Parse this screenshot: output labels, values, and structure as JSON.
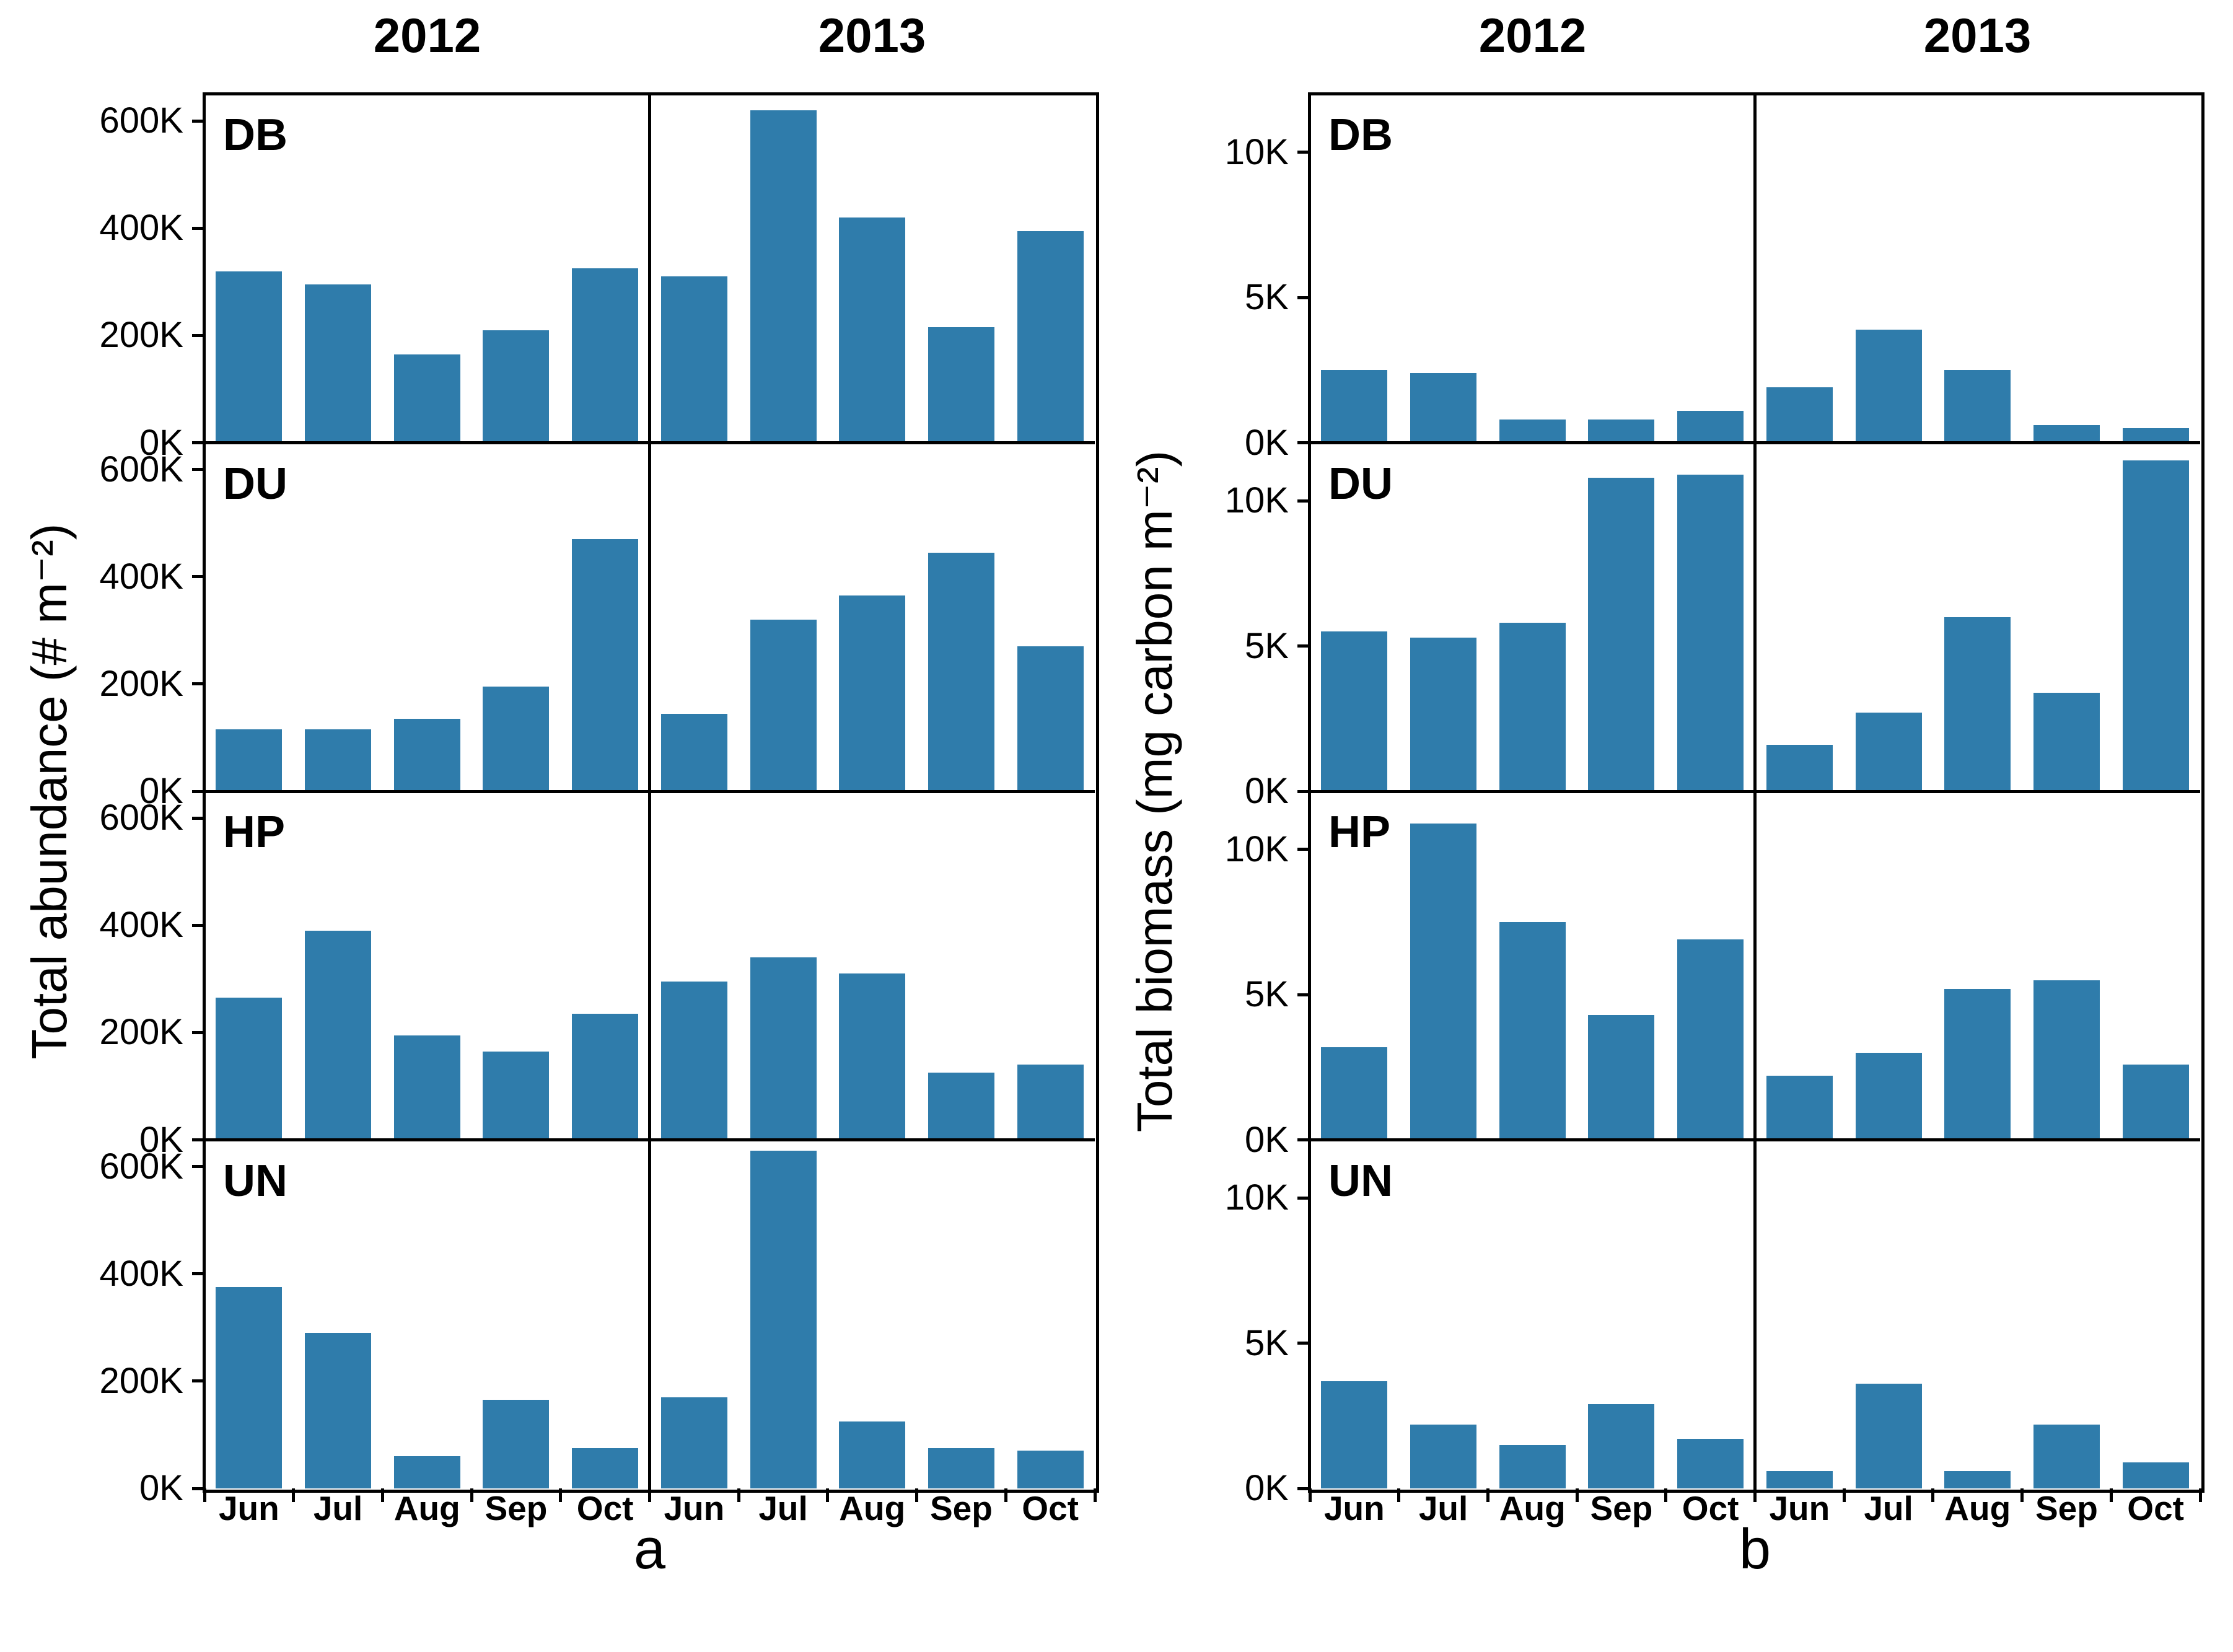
{
  "chart_data": [
    {
      "type": "bar",
      "caption": "a",
      "title_cols": [
        "2012",
        "2013"
      ],
      "ylabel": "Total abundance (# m⁻²)",
      "x_categories": [
        "Jun",
        "Jul",
        "Aug",
        "Sep",
        "Oct"
      ],
      "ytick_values": [
        0,
        200,
        400,
        600
      ],
      "ytick_labels": [
        "0K",
        "200K",
        "400K",
        "600K"
      ],
      "ylim": [
        0,
        650
      ],
      "bar_color": "#2f7cab",
      "legend": "none",
      "grid": "off",
      "rows": [
        {
          "label": "DB",
          "series": [
            {
              "name": "2012",
              "values": [
                320,
                295,
                165,
                210,
                325
              ]
            },
            {
              "name": "2013",
              "values": [
                310,
                620,
                420,
                215,
                395
              ]
            }
          ]
        },
        {
          "label": "DU",
          "series": [
            {
              "name": "2012",
              "values": [
                115,
                115,
                135,
                195,
                470
              ]
            },
            {
              "name": "2013",
              "values": [
                145,
                320,
                365,
                445,
                270
              ]
            }
          ]
        },
        {
          "label": "HP",
          "series": [
            {
              "name": "2012",
              "values": [
                265,
                390,
                195,
                165,
                235
              ]
            },
            {
              "name": "2013",
              "values": [
                295,
                340,
                310,
                125,
                140
              ]
            }
          ]
        },
        {
          "label": "UN",
          "series": [
            {
              "name": "2012",
              "values": [
                375,
                290,
                60,
                165,
                75
              ]
            },
            {
              "name": "2013",
              "values": [
                170,
                630,
                125,
                75,
                70
              ]
            }
          ]
        }
      ]
    },
    {
      "type": "bar",
      "caption": "b",
      "title_cols": [
        "2012",
        "2013"
      ],
      "ylabel": "Total biomass (mg carbon m⁻²)",
      "x_categories": [
        "Jun",
        "Jul",
        "Aug",
        "Sep",
        "Oct"
      ],
      "ytick_values": [
        0,
        5,
        10
      ],
      "ytick_labels": [
        "0K",
        "5K",
        "10K"
      ],
      "ylim": [
        0,
        12
      ],
      "bar_color": "#2f7cab",
      "legend": "none",
      "grid": "off",
      "rows": [
        {
          "label": "DB",
          "series": [
            {
              "name": "2012",
              "values": [
                2.5,
                2.4,
                0.8,
                0.8,
                1.1
              ]
            },
            {
              "name": "2013",
              "values": [
                1.9,
                3.9,
                2.5,
                0.6,
                0.5
              ]
            }
          ]
        },
        {
          "label": "DU",
          "series": [
            {
              "name": "2012",
              "values": [
                5.5,
                5.3,
                5.8,
                10.8,
                10.9
              ]
            },
            {
              "name": "2013",
              "values": [
                1.6,
                2.7,
                6.0,
                3.4,
                11.4
              ]
            }
          ]
        },
        {
          "label": "HP",
          "series": [
            {
              "name": "2012",
              "values": [
                3.2,
                10.9,
                7.5,
                4.3,
                6.9
              ]
            },
            {
              "name": "2013",
              "values": [
                2.2,
                3.0,
                5.2,
                5.5,
                2.6
              ]
            }
          ]
        },
        {
          "label": "UN",
          "series": [
            {
              "name": "2012",
              "values": [
                3.7,
                2.2,
                1.5,
                2.9,
                1.7
              ]
            },
            {
              "name": "2013",
              "values": [
                0.6,
                3.6,
                0.6,
                2.2,
                0.9
              ]
            }
          ]
        }
      ]
    }
  ]
}
